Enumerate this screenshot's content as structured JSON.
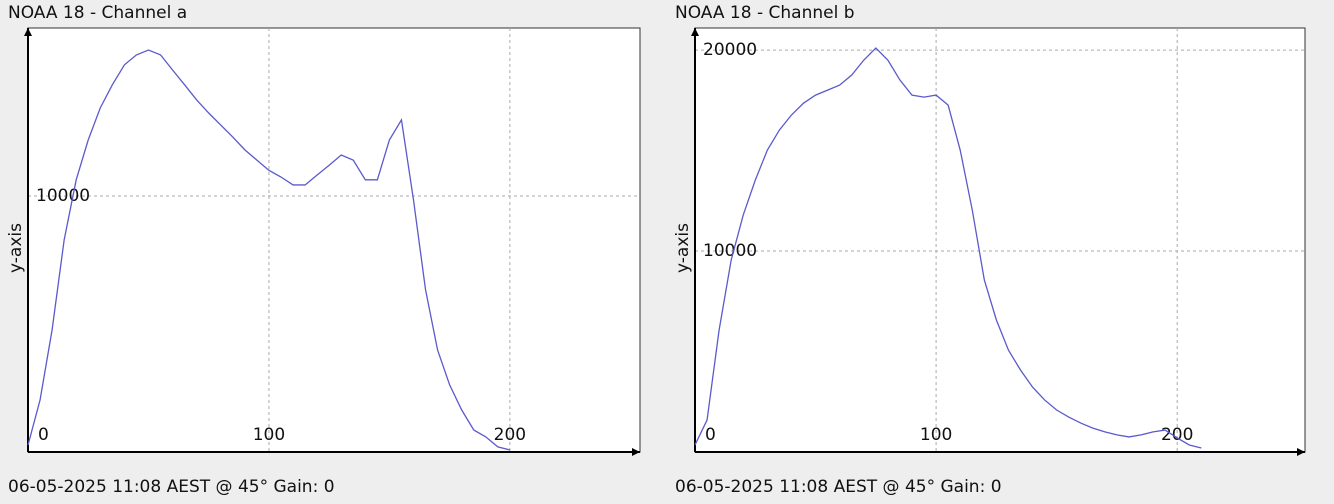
{
  "chart_data": [
    {
      "type": "line",
      "title": "NOAA 18 - Channel a",
      "y_label": "y-axis",
      "footer": "06-05-2025 11:08 AEST @ 45° Gain: 0",
      "color": "#5a5acd",
      "grid": true,
      "xlim": [
        0,
        254
      ],
      "ylim": [
        0,
        16560
      ],
      "xticks": [
        0,
        100,
        200
      ],
      "yticks": [
        10000
      ],
      "x": [
        0,
        5,
        10,
        15,
        20,
        25,
        30,
        35,
        40,
        45,
        50,
        55,
        60,
        65,
        70,
        75,
        80,
        85,
        90,
        95,
        100,
        105,
        110,
        115,
        120,
        125,
        130,
        135,
        140,
        145,
        150,
        155,
        160,
        165,
        170,
        175,
        180,
        185,
        190,
        195,
        200
      ],
      "values": [
        270,
        2030,
        4770,
        8280,
        10630,
        12190,
        13440,
        14340,
        15120,
        15510,
        15700,
        15510,
        14920,
        14340,
        13750,
        13240,
        12770,
        12300,
        11800,
        11400,
        11000,
        10740,
        10430,
        10430,
        10820,
        11200,
        11600,
        11400,
        10630,
        10630,
        12190,
        12970,
        9840,
        6330,
        3980,
        2620,
        1640,
        860,
        590,
        200,
        80
      ]
    },
    {
      "type": "line",
      "title": "NOAA 18 - Channel b",
      "y_label": "y-axis",
      "footer": "06-05-2025 11:08 AEST @ 45° Gain: 0",
      "color": "#5a5acd",
      "grid": true,
      "xlim": [
        0,
        253
      ],
      "ylim": [
        0,
        21100
      ],
      "xticks": [
        0,
        100,
        200
      ],
      "yticks": [
        10000,
        20000
      ],
      "x": [
        0,
        5,
        10,
        15,
        20,
        25,
        30,
        35,
        40,
        45,
        50,
        55,
        60,
        65,
        70,
        75,
        80,
        85,
        90,
        95,
        100,
        105,
        110,
        115,
        120,
        125,
        130,
        135,
        140,
        145,
        150,
        155,
        160,
        165,
        170,
        175,
        180,
        185,
        190,
        195,
        200,
        205,
        210
      ],
      "values": [
        350,
        1590,
        6070,
        9550,
        11790,
        13530,
        15020,
        16020,
        16770,
        17360,
        17760,
        18010,
        18260,
        18760,
        19500,
        20100,
        19500,
        18510,
        17760,
        17660,
        17760,
        17260,
        15020,
        12040,
        8560,
        6570,
        5070,
        4080,
        3230,
        2590,
        2090,
        1740,
        1440,
        1190,
        1000,
        850,
        750,
        850,
        1000,
        1090,
        700,
        350,
        200
      ]
    }
  ]
}
